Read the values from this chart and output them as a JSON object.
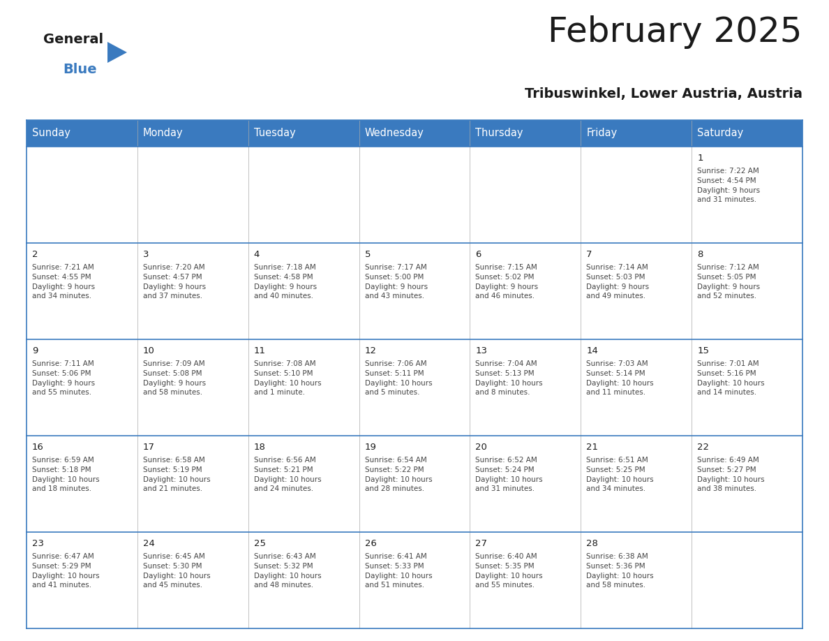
{
  "title": "February 2025",
  "subtitle": "Tribuswinkel, Lower Austria, Austria",
  "header_color": "#3a7abf",
  "header_text_color": "#ffffff",
  "cell_bg_color": "#ffffff",
  "border_color": "#3a7abf",
  "day_headers": [
    "Sunday",
    "Monday",
    "Tuesday",
    "Wednesday",
    "Thursday",
    "Friday",
    "Saturday"
  ],
  "title_color": "#1a1a1a",
  "subtitle_color": "#1a1a1a",
  "day_num_color": "#1a1a1a",
  "cell_text_color": "#444444",
  "logo_general_color": "#1a1a1a",
  "logo_blue_color": "#3a7abf",
  "logo_triangle_color": "#3a7abf",
  "weeks": [
    [
      {
        "day": "",
        "info": ""
      },
      {
        "day": "",
        "info": ""
      },
      {
        "day": "",
        "info": ""
      },
      {
        "day": "",
        "info": ""
      },
      {
        "day": "",
        "info": ""
      },
      {
        "day": "",
        "info": ""
      },
      {
        "day": "1",
        "info": "Sunrise: 7:22 AM\nSunset: 4:54 PM\nDaylight: 9 hours\nand 31 minutes."
      }
    ],
    [
      {
        "day": "2",
        "info": "Sunrise: 7:21 AM\nSunset: 4:55 PM\nDaylight: 9 hours\nand 34 minutes."
      },
      {
        "day": "3",
        "info": "Sunrise: 7:20 AM\nSunset: 4:57 PM\nDaylight: 9 hours\nand 37 minutes."
      },
      {
        "day": "4",
        "info": "Sunrise: 7:18 AM\nSunset: 4:58 PM\nDaylight: 9 hours\nand 40 minutes."
      },
      {
        "day": "5",
        "info": "Sunrise: 7:17 AM\nSunset: 5:00 PM\nDaylight: 9 hours\nand 43 minutes."
      },
      {
        "day": "6",
        "info": "Sunrise: 7:15 AM\nSunset: 5:02 PM\nDaylight: 9 hours\nand 46 minutes."
      },
      {
        "day": "7",
        "info": "Sunrise: 7:14 AM\nSunset: 5:03 PM\nDaylight: 9 hours\nand 49 minutes."
      },
      {
        "day": "8",
        "info": "Sunrise: 7:12 AM\nSunset: 5:05 PM\nDaylight: 9 hours\nand 52 minutes."
      }
    ],
    [
      {
        "day": "9",
        "info": "Sunrise: 7:11 AM\nSunset: 5:06 PM\nDaylight: 9 hours\nand 55 minutes."
      },
      {
        "day": "10",
        "info": "Sunrise: 7:09 AM\nSunset: 5:08 PM\nDaylight: 9 hours\nand 58 minutes."
      },
      {
        "day": "11",
        "info": "Sunrise: 7:08 AM\nSunset: 5:10 PM\nDaylight: 10 hours\nand 1 minute."
      },
      {
        "day": "12",
        "info": "Sunrise: 7:06 AM\nSunset: 5:11 PM\nDaylight: 10 hours\nand 5 minutes."
      },
      {
        "day": "13",
        "info": "Sunrise: 7:04 AM\nSunset: 5:13 PM\nDaylight: 10 hours\nand 8 minutes."
      },
      {
        "day": "14",
        "info": "Sunrise: 7:03 AM\nSunset: 5:14 PM\nDaylight: 10 hours\nand 11 minutes."
      },
      {
        "day": "15",
        "info": "Sunrise: 7:01 AM\nSunset: 5:16 PM\nDaylight: 10 hours\nand 14 minutes."
      }
    ],
    [
      {
        "day": "16",
        "info": "Sunrise: 6:59 AM\nSunset: 5:18 PM\nDaylight: 10 hours\nand 18 minutes."
      },
      {
        "day": "17",
        "info": "Sunrise: 6:58 AM\nSunset: 5:19 PM\nDaylight: 10 hours\nand 21 minutes."
      },
      {
        "day": "18",
        "info": "Sunrise: 6:56 AM\nSunset: 5:21 PM\nDaylight: 10 hours\nand 24 minutes."
      },
      {
        "day": "19",
        "info": "Sunrise: 6:54 AM\nSunset: 5:22 PM\nDaylight: 10 hours\nand 28 minutes."
      },
      {
        "day": "20",
        "info": "Sunrise: 6:52 AM\nSunset: 5:24 PM\nDaylight: 10 hours\nand 31 minutes."
      },
      {
        "day": "21",
        "info": "Sunrise: 6:51 AM\nSunset: 5:25 PM\nDaylight: 10 hours\nand 34 minutes."
      },
      {
        "day": "22",
        "info": "Sunrise: 6:49 AM\nSunset: 5:27 PM\nDaylight: 10 hours\nand 38 minutes."
      }
    ],
    [
      {
        "day": "23",
        "info": "Sunrise: 6:47 AM\nSunset: 5:29 PM\nDaylight: 10 hours\nand 41 minutes."
      },
      {
        "day": "24",
        "info": "Sunrise: 6:45 AM\nSunset: 5:30 PM\nDaylight: 10 hours\nand 45 minutes."
      },
      {
        "day": "25",
        "info": "Sunrise: 6:43 AM\nSunset: 5:32 PM\nDaylight: 10 hours\nand 48 minutes."
      },
      {
        "day": "26",
        "info": "Sunrise: 6:41 AM\nSunset: 5:33 PM\nDaylight: 10 hours\nand 51 minutes."
      },
      {
        "day": "27",
        "info": "Sunrise: 6:40 AM\nSunset: 5:35 PM\nDaylight: 10 hours\nand 55 minutes."
      },
      {
        "day": "28",
        "info": "Sunrise: 6:38 AM\nSunset: 5:36 PM\nDaylight: 10 hours\nand 58 minutes."
      },
      {
        "day": "",
        "info": ""
      }
    ]
  ]
}
